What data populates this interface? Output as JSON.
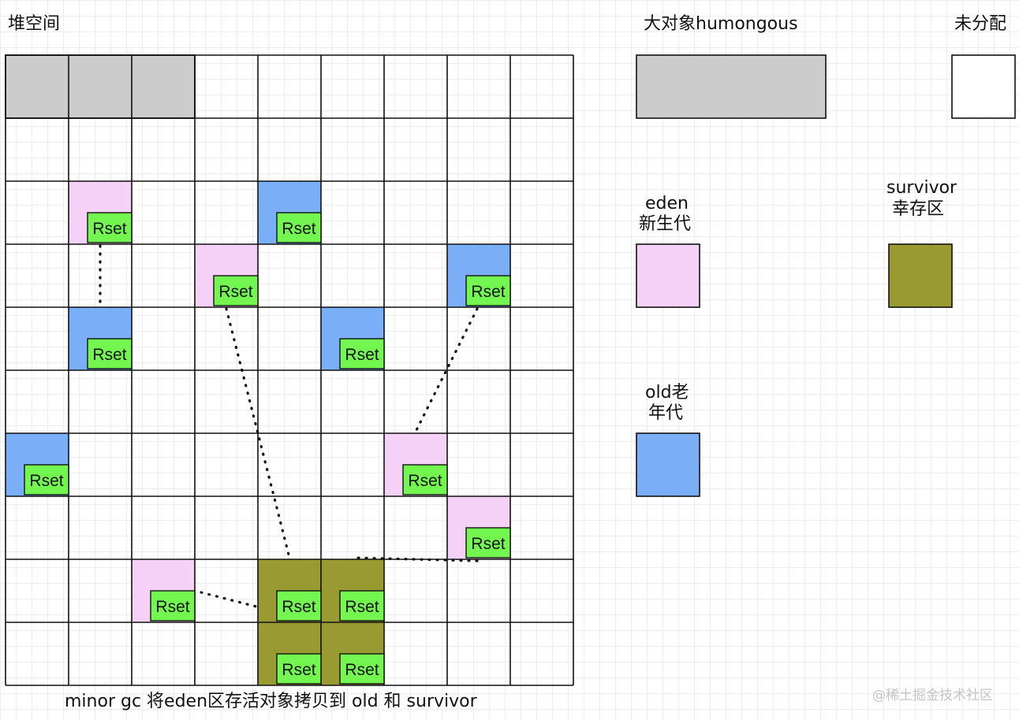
{
  "heap": {
    "title": "堆空间",
    "rows": 10,
    "cols": 9,
    "humongous_cols": 3,
    "regions": [
      {
        "type": "eden",
        "row": 2,
        "col": 1
      },
      {
        "type": "old",
        "row": 2,
        "col": 4
      },
      {
        "type": "eden",
        "row": 3,
        "col": 3
      },
      {
        "type": "old",
        "row": 3,
        "col": 7
      },
      {
        "type": "old",
        "row": 4,
        "col": 1
      },
      {
        "type": "old",
        "row": 4,
        "col": 5
      },
      {
        "type": "old",
        "row": 6,
        "col": 0
      },
      {
        "type": "eden",
        "row": 6,
        "col": 6
      },
      {
        "type": "eden",
        "row": 7,
        "col": 7
      },
      {
        "type": "eden",
        "row": 8,
        "col": 2
      },
      {
        "type": "survivor",
        "row": 8,
        "col": 4
      },
      {
        "type": "survivor",
        "row": 8,
        "col": 5
      },
      {
        "type": "survivor",
        "row": 9,
        "col": 4
      },
      {
        "type": "survivor",
        "row": 9,
        "col": 5
      }
    ],
    "rset_label": "Rset",
    "references": [
      {
        "from": [
          2,
          1
        ],
        "to": [
          4,
          1
        ]
      },
      {
        "from": [
          3,
          3
        ],
        "to": [
          8,
          4
        ]
      },
      {
        "from": [
          3,
          7
        ],
        "to": [
          6,
          6
        ]
      },
      {
        "from": [
          8,
          2
        ],
        "to": [
          8,
          4
        ]
      },
      {
        "from": [
          7,
          7
        ],
        "to": [
          8,
          5
        ]
      }
    ]
  },
  "legend": {
    "humongous": "大对象humongous",
    "unallocated": "未分配",
    "eden_line1": "eden",
    "eden_line2": "新生代",
    "survivor_line1": "survivor",
    "survivor_line2": "幸存区",
    "old_line1": "old老",
    "old_line2": "年代"
  },
  "caption": "minor gc 将eden区存活对象拷贝到 old 和 survivor",
  "watermark": "@稀土掘金技术社区",
  "colors": {
    "eden": "#f5d0f7",
    "old": "#7aaff8",
    "survivor": "#9a9a32",
    "humongous": "#cccccc",
    "rset": "#73f750",
    "line": "#111111"
  }
}
